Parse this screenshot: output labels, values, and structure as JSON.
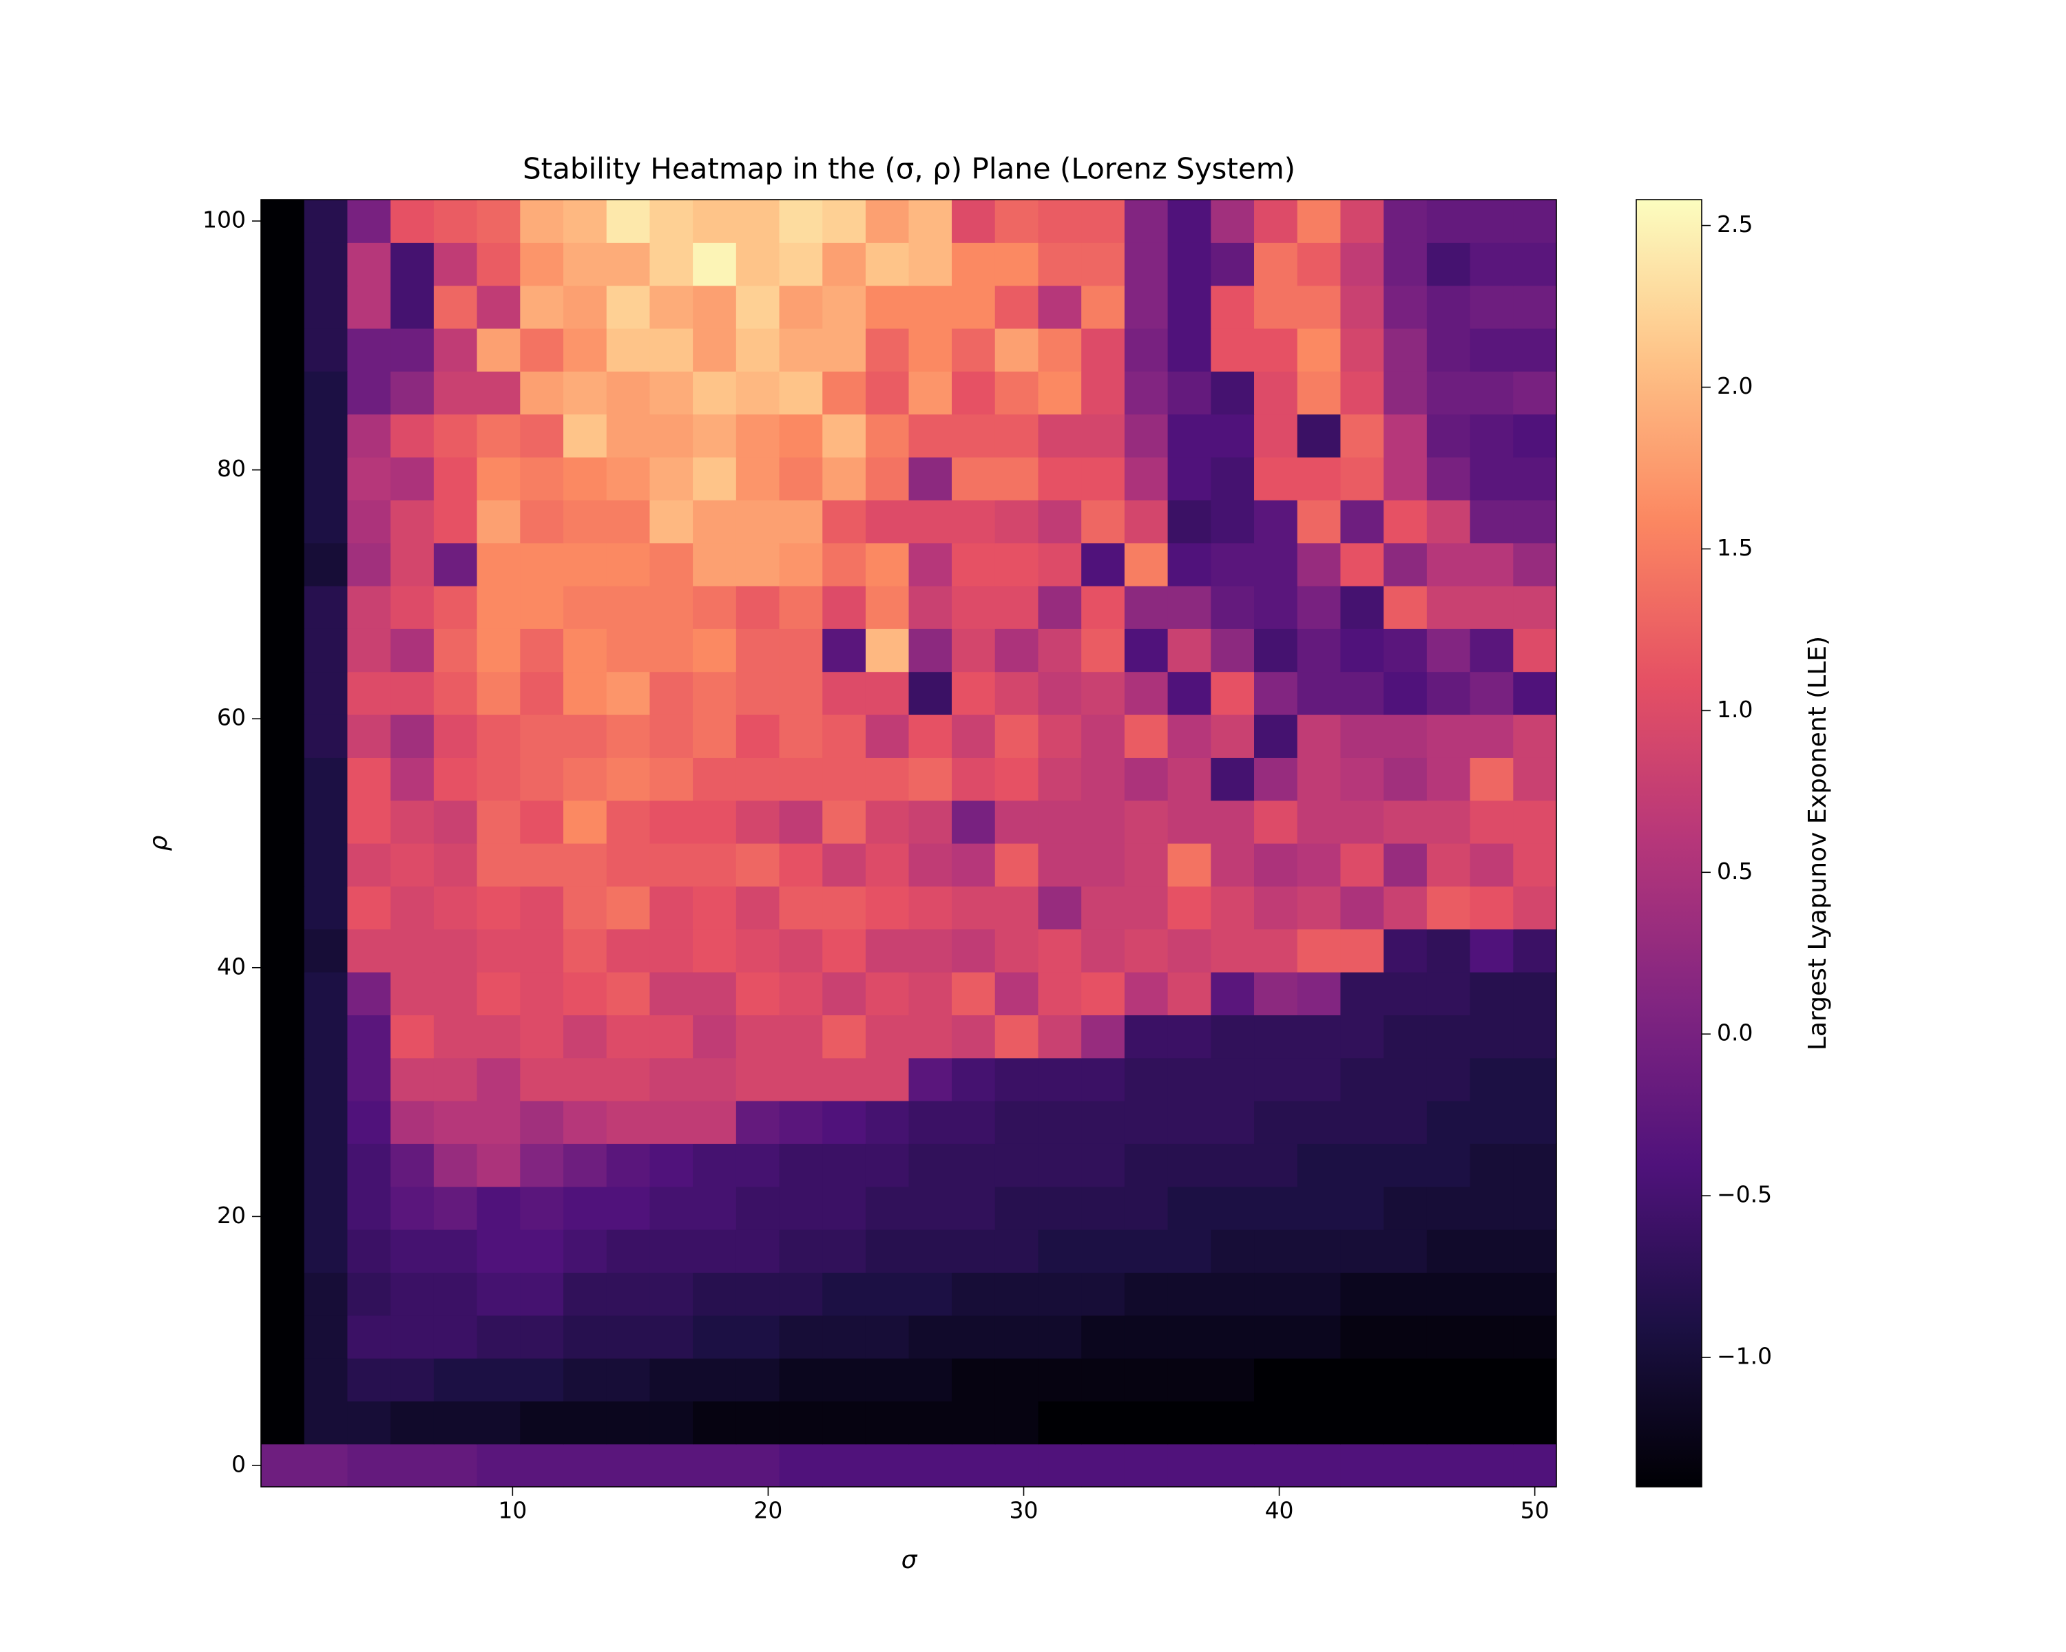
{
  "chart_data": {
    "type": "heatmap",
    "title": "Stability Heatmap in the (σ, ρ) Plane (Lorenz System)",
    "x_label": "σ",
    "y_label": "ρ",
    "colorbar_label": "Largest Lyapunov Exponent (LLE)",
    "colormap": "magma",
    "x": [
      1,
      2.69,
      4.38,
      6.07,
      7.76,
      9.45,
      11.14,
      12.83,
      14.52,
      16.21,
      17.9,
      19.59,
      21.28,
      22.97,
      24.66,
      26.34,
      28.03,
      29.72,
      31.41,
      33.1,
      34.79,
      36.48,
      38.17,
      39.86,
      41.55,
      43.24,
      44.93,
      46.62,
      48.31,
      50
    ],
    "y": [
      0,
      3.45,
      6.9,
      10.34,
      13.79,
      17.24,
      20.69,
      24.14,
      27.59,
      31.03,
      34.48,
      37.93,
      41.38,
      44.83,
      48.28,
      51.72,
      55.17,
      58.62,
      62.07,
      65.52,
      68.97,
      72.41,
      75.86,
      79.31,
      82.76,
      86.21,
      89.66,
      93.1,
      96.55,
      100
    ],
    "z": [
      [
        -0.1,
        -0.1,
        -0.2,
        -0.2,
        -0.2,
        -0.3,
        -0.3,
        -0.3,
        -0.3,
        -0.3,
        -0.3,
        -0.3,
        -0.4,
        -0.4,
        -0.4,
        -0.4,
        -0.4,
        -0.4,
        -0.4,
        -0.4,
        -0.4,
        -0.4,
        -0.4,
        -0.4,
        -0.4,
        -0.4,
        -0.4,
        -0.4,
        -0.4,
        -0.4
      ],
      [
        -1.4,
        -1.0,
        -1.0,
        -1.1,
        -1.1,
        -1.1,
        -1.2,
        -1.2,
        -1.2,
        -1.2,
        -1.3,
        -1.3,
        -1.3,
        -1.3,
        -1.3,
        -1.3,
        -1.3,
        -1.3,
        -1.4,
        -1.4,
        -1.4,
        -1.4,
        -1.4,
        -1.4,
        -1.4,
        -1.4,
        -1.4,
        -1.4,
        -1.4,
        -1.4
      ],
      [
        -1.4,
        -1.0,
        -0.8,
        -0.8,
        -0.9,
        -0.9,
        -0.9,
        -1.0,
        -1.0,
        -1.1,
        -1.1,
        -1.1,
        -1.2,
        -1.2,
        -1.2,
        -1.2,
        -1.3,
        -1.3,
        -1.3,
        -1.3,
        -1.3,
        -1.3,
        -1.3,
        -1.4,
        -1.4,
        -1.4,
        -1.4,
        -1.4,
        -1.4,
        -1.4
      ],
      [
        -1.4,
        -1.0,
        -0.6,
        -0.6,
        -0.6,
        -0.7,
        -0.7,
        -0.8,
        -0.8,
        -0.8,
        -0.9,
        -0.9,
        -1.0,
        -1.0,
        -1.0,
        -1.1,
        -1.1,
        -1.1,
        -1.1,
        -1.2,
        -1.2,
        -1.2,
        -1.2,
        -1.2,
        -1.2,
        -1.3,
        -1.3,
        -1.3,
        -1.3,
        -1.3
      ],
      [
        -1.4,
        -1.0,
        -0.7,
        -0.6,
        -0.6,
        -0.5,
        -0.5,
        -0.7,
        -0.7,
        -0.7,
        -0.8,
        -0.8,
        -0.8,
        -0.9,
        -0.9,
        -0.9,
        -1.0,
        -1.0,
        -1.0,
        -1.0,
        -1.1,
        -1.1,
        -1.1,
        -1.1,
        -1.1,
        -1.2,
        -1.2,
        -1.2,
        -1.2,
        -1.2
      ],
      [
        -1.4,
        -0.9,
        -0.6,
        -0.5,
        -0.5,
        -0.4,
        -0.4,
        -0.5,
        -0.6,
        -0.6,
        -0.6,
        -0.6,
        -0.7,
        -0.7,
        -0.8,
        -0.8,
        -0.8,
        -0.8,
        -0.9,
        -0.9,
        -0.9,
        -0.9,
        -1.0,
        -1.0,
        -1.0,
        -1.0,
        -1.0,
        -1.1,
        -1.1,
        -1.1
      ],
      [
        -1.4,
        -0.9,
        -0.5,
        -0.3,
        -0.2,
        -0.4,
        -0.3,
        -0.4,
        -0.4,
        -0.5,
        -0.5,
        -0.6,
        -0.6,
        -0.6,
        -0.7,
        -0.7,
        -0.7,
        -0.8,
        -0.8,
        -0.8,
        -0.8,
        -0.9,
        -0.9,
        -0.9,
        -0.9,
        -0.9,
        -1.0,
        -1.0,
        -1.0,
        -1.0
      ],
      [
        -1.4,
        -0.9,
        -0.5,
        -0.2,
        0.3,
        0.5,
        0.1,
        -0.1,
        -0.3,
        -0.4,
        -0.5,
        -0.5,
        -0.6,
        -0.6,
        -0.6,
        -0.7,
        -0.7,
        -0.7,
        -0.7,
        -0.7,
        -0.8,
        -0.8,
        -0.8,
        -0.8,
        -0.9,
        -0.9,
        -0.9,
        -0.9,
        -1.0,
        -1.0
      ],
      [
        -1.4,
        -0.9,
        -0.4,
        0.5,
        0.6,
        0.6,
        0.4,
        0.6,
        0.7,
        0.7,
        0.7,
        -0.2,
        -0.3,
        -0.4,
        -0.5,
        -0.6,
        -0.6,
        -0.7,
        -0.7,
        -0.7,
        -0.7,
        -0.7,
        -0.7,
        -0.8,
        -0.8,
        -0.8,
        -0.8,
        -0.9,
        -0.9,
        -0.9
      ],
      [
        -1.4,
        -0.9,
        -0.3,
        0.8,
        0.8,
        0.6,
        0.9,
        0.9,
        0.9,
        0.8,
        0.8,
        0.9,
        0.9,
        0.9,
        0.9,
        -0.3,
        -0.5,
        -0.6,
        -0.6,
        -0.6,
        -0.7,
        -0.7,
        -0.7,
        -0.7,
        -0.7,
        -0.8,
        -0.8,
        -0.8,
        -0.9,
        -0.9
      ],
      [
        -1.4,
        -0.9,
        -0.3,
        1.1,
        0.9,
        0.9,
        1.0,
        0.8,
        1.0,
        1.0,
        0.7,
        0.9,
        0.9,
        1.2,
        0.9,
        0.9,
        0.8,
        1.2,
        0.8,
        0.3,
        -0.6,
        -0.6,
        -0.7,
        -0.7,
        -0.7,
        -0.7,
        -0.8,
        -0.8,
        -0.8,
        -0.8
      ],
      [
        -1.4,
        -0.9,
        0.0,
        0.9,
        0.9,
        1.1,
        1.0,
        1.1,
        1.2,
        0.8,
        0.8,
        1.1,
        1.0,
        0.8,
        1.0,
        0.9,
        1.2,
        0.6,
        1.0,
        1.1,
        0.6,
        0.9,
        -0.3,
        0.2,
        0.1,
        -0.7,
        -0.7,
        -0.7,
        -0.8,
        -0.8
      ],
      [
        -1.4,
        -1.0,
        0.9,
        0.9,
        0.9,
        1.0,
        1.0,
        1.2,
        1.0,
        1.0,
        1.1,
        1.0,
        0.9,
        1.1,
        0.8,
        0.8,
        0.7,
        0.9,
        1.0,
        0.8,
        0.9,
        0.8,
        0.9,
        0.9,
        1.2,
        1.2,
        -0.6,
        -0.7,
        -0.4,
        -0.6
      ],
      [
        -1.4,
        -0.9,
        1.1,
        0.9,
        1.0,
        1.1,
        1.0,
        1.3,
        1.4,
        1.0,
        1.1,
        0.9,
        1.2,
        1.2,
        1.1,
        1.0,
        0.9,
        0.9,
        0.3,
        0.8,
        0.8,
        1.1,
        0.9,
        0.7,
        0.8,
        0.5,
        0.8,
        1.2,
        1.1,
        0.9
      ],
      [
        -1.4,
        -0.9,
        0.9,
        1.0,
        0.9,
        1.3,
        1.3,
        1.3,
        1.2,
        1.2,
        1.2,
        1.3,
        1.1,
        0.8,
        1.0,
        0.7,
        0.6,
        1.2,
        0.7,
        0.7,
        0.8,
        1.4,
        0.7,
        0.5,
        0.6,
        1.0,
        0.3,
        0.9,
        0.7,
        1.0
      ],
      [
        -1.4,
        -0.9,
        1.1,
        0.9,
        0.8,
        1.3,
        1.1,
        1.6,
        1.2,
        1.1,
        1.1,
        0.9,
        0.7,
        1.3,
        0.9,
        0.8,
        0.0,
        0.7,
        0.7,
        0.7,
        0.8,
        0.7,
        0.7,
        1.0,
        0.7,
        0.7,
        0.8,
        0.8,
        1.0,
        1.0
      ],
      [
        -1.4,
        -0.9,
        1.1,
        0.6,
        1.1,
        1.2,
        1.3,
        1.4,
        1.5,
        1.4,
        1.2,
        1.2,
        1.2,
        1.2,
        1.2,
        1.3,
        1.0,
        1.1,
        0.8,
        0.7,
        0.5,
        0.7,
        -0.5,
        0.3,
        0.7,
        0.6,
        0.4,
        0.6,
        1.3,
        0.8
      ],
      [
        -1.4,
        -0.8,
        0.8,
        0.4,
        1.0,
        1.2,
        1.3,
        1.3,
        1.4,
        1.3,
        1.4,
        1.1,
        1.3,
        1.2,
        0.7,
        1.1,
        0.8,
        1.2,
        0.9,
        0.7,
        1.2,
        0.6,
        0.8,
        -0.5,
        0.7,
        0.5,
        0.5,
        0.6,
        0.6,
        0.8
      ],
      [
        -1.4,
        -0.8,
        1.0,
        1.0,
        1.2,
        1.5,
        1.2,
        1.6,
        1.7,
        1.3,
        1.4,
        1.3,
        1.3,
        1.0,
        1.0,
        -0.6,
        1.1,
        0.9,
        0.7,
        0.8,
        0.5,
        -0.4,
        1.1,
        0.1,
        -0.2,
        -0.2,
        -0.4,
        -0.2,
        0.0,
        -0.4
      ],
      [
        -1.4,
        -0.8,
        0.8,
        0.5,
        1.3,
        1.6,
        1.3,
        1.6,
        1.5,
        1.5,
        1.6,
        1.3,
        1.3,
        -0.3,
        2.0,
        0.2,
        0.9,
        0.5,
        0.8,
        1.2,
        -0.4,
        0.8,
        0.2,
        -0.5,
        -0.2,
        -0.4,
        -0.3,
        0.1,
        -0.3,
        1.0
      ],
      [
        -1.4,
        -0.8,
        0.8,
        1.0,
        1.2,
        1.6,
        1.6,
        1.5,
        1.5,
        1.5,
        1.4,
        1.2,
        1.4,
        1.0,
        1.5,
        0.8,
        1.0,
        1.0,
        0.3,
        1.1,
        0.2,
        0.2,
        -0.2,
        -0.3,
        0.0,
        -0.5,
        1.2,
        0.8,
        0.8,
        0.8
      ],
      [
        -1.4,
        -1.0,
        0.4,
        0.9,
        -0.1,
        1.6,
        1.6,
        1.6,
        1.6,
        1.5,
        1.8,
        1.8,
        1.7,
        1.4,
        1.6,
        0.6,
        1.1,
        1.1,
        1.0,
        -0.4,
        1.5,
        -0.4,
        -0.3,
        -0.3,
        0.3,
        1.1,
        0.2,
        0.6,
        0.6,
        0.3
      ],
      [
        -1.4,
        -0.9,
        0.5,
        0.9,
        1.1,
        1.8,
        1.4,
        1.5,
        1.5,
        2.0,
        1.8,
        1.8,
        1.8,
        1.2,
        1.0,
        1.0,
        1.0,
        0.9,
        0.7,
        1.3,
        0.9,
        -0.6,
        -0.5,
        -0.3,
        1.3,
        -0.1,
        1.1,
        0.8,
        -0.1,
        -0.1
      ],
      [
        -1.4,
        -0.9,
        0.6,
        0.5,
        1.1,
        1.6,
        1.5,
        1.6,
        1.7,
        1.9,
        2.1,
        1.7,
        1.5,
        1.8,
        1.4,
        0.2,
        1.4,
        1.4,
        1.1,
        1.1,
        0.5,
        -0.4,
        -0.5,
        1.1,
        1.1,
        1.2,
        0.6,
        0.0,
        -0.3,
        -0.3
      ],
      [
        -1.4,
        -0.9,
        0.5,
        1.0,
        1.2,
        1.4,
        1.3,
        2.1,
        1.8,
        1.8,
        1.9,
        1.7,
        1.6,
        2.0,
        1.5,
        1.2,
        1.2,
        1.2,
        0.9,
        0.9,
        0.3,
        -0.4,
        -0.4,
        1.0,
        -0.6,
        1.3,
        0.6,
        -0.2,
        -0.3,
        -0.4
      ],
      [
        -1.4,
        -0.9,
        -0.1,
        0.2,
        0.8,
        0.8,
        1.8,
        1.9,
        1.8,
        1.9,
        2.1,
        2.0,
        2.1,
        1.5,
        1.2,
        1.7,
        1.1,
        1.4,
        1.6,
        1.0,
        0.1,
        -0.2,
        -0.5,
        1.0,
        1.5,
        1.0,
        0.2,
        -0.1,
        -0.1,
        0.0
      ],
      [
        -1.4,
        -0.8,
        -0.1,
        -0.1,
        0.7,
        1.8,
        1.4,
        1.7,
        2.1,
        2.1,
        1.8,
        2.1,
        1.9,
        1.9,
        1.3,
        1.6,
        1.3,
        1.8,
        1.5,
        1.0,
        0.0,
        -0.4,
        1.1,
        1.1,
        1.6,
        0.9,
        0.2,
        -0.2,
        -0.3,
        -0.3
      ],
      [
        -1.4,
        -0.8,
        0.6,
        -0.5,
        1.3,
        0.7,
        1.9,
        1.8,
        2.2,
        1.9,
        1.8,
        2.2,
        1.8,
        1.9,
        1.6,
        1.6,
        1.6,
        1.2,
        0.6,
        1.5,
        0.1,
        -0.4,
        1.1,
        1.4,
        1.4,
        0.8,
        0.0,
        -0.2,
        -0.1,
        -0.1
      ],
      [
        -1.4,
        -0.8,
        0.6,
        -0.5,
        0.7,
        1.2,
        1.7,
        1.9,
        1.9,
        2.2,
        2.5,
        2.1,
        2.2,
        1.8,
        2.1,
        2.0,
        1.6,
        1.6,
        1.3,
        1.3,
        0.1,
        -0.4,
        -0.2,
        1.4,
        1.2,
        0.7,
        -0.1,
        -0.5,
        -0.3,
        -0.3
      ],
      [
        -1.4,
        -0.8,
        0.0,
        1.1,
        1.2,
        1.3,
        1.9,
        2.0,
        2.4,
        2.2,
        2.1,
        2.1,
        2.3,
        2.2,
        1.8,
        2.0,
        1.0,
        1.3,
        1.2,
        1.2,
        0.1,
        -0.4,
        0.4,
        1.0,
        1.5,
        0.9,
        -0.1,
        -0.2,
        -0.2,
        -0.2
      ]
    ],
    "xlim": [
      0.155,
      50.845
    ],
    "ylim": [
      -1.72,
      101.72
    ],
    "xticks": [
      10,
      20,
      30,
      40,
      50
    ],
    "yticks": [
      0,
      20,
      40,
      60,
      80,
      100
    ],
    "clim": [
      -1.4,
      2.58
    ],
    "cticks": [
      {
        "value": -1,
        "label": "−1.0"
      },
      {
        "value": -0.5,
        "label": "−0.5"
      },
      {
        "value": 0,
        "label": "0.0"
      },
      0.5,
      {
        "value": 1,
        "label": "1.0"
      },
      1.5,
      {
        "value": 2,
        "label": "2.0"
      },
      2.5
    ]
  }
}
